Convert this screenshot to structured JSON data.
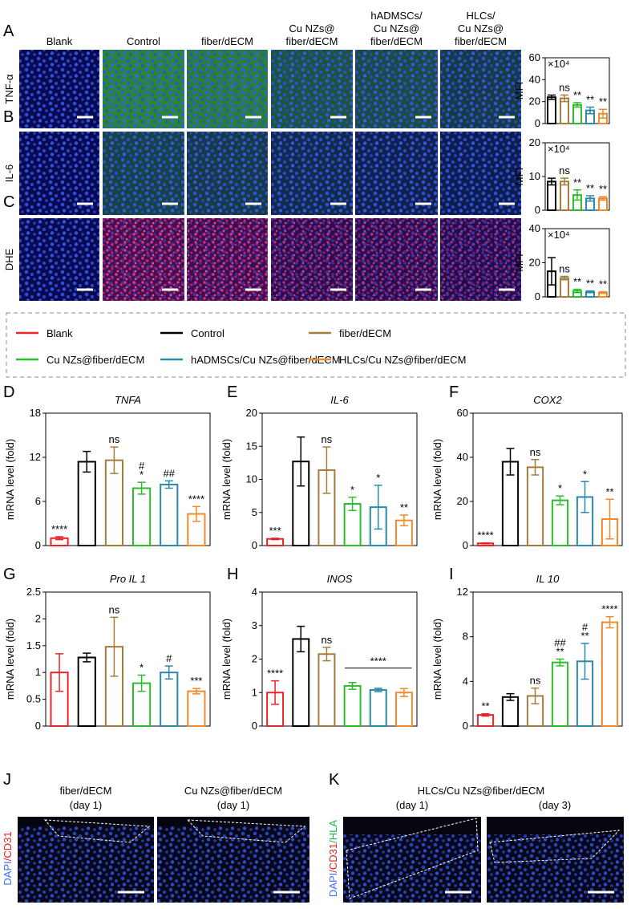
{
  "panel_labels": [
    "A",
    "B",
    "C",
    "D",
    "E",
    "F",
    "G",
    "H",
    "I",
    "J",
    "K"
  ],
  "columns": [
    [
      "Blank"
    ],
    [
      "Control"
    ],
    [
      "fiber/dECM"
    ],
    [
      "Cu NZs@",
      "fiber/dECM"
    ],
    [
      "hADMSCs/",
      "Cu NZs@",
      "fiber/dECM"
    ],
    [
      "HLCs/",
      "Cu NZs@",
      "fiber/dECM"
    ]
  ],
  "rows": [
    "TNF-α",
    "IL-6",
    "DHE"
  ],
  "legend": [
    {
      "name": "Blank",
      "color": "#e8262a"
    },
    {
      "name": "Control",
      "color": "#000000"
    },
    {
      "name": "fiber/dECM",
      "color": "#a57c3e"
    },
    {
      "name": "Cu NZs@fiber/dECM",
      "color": "#2bbd2b"
    },
    {
      "name": "hADMSCs/Cu NZs@fiber/dECM",
      "color": "#2a8aa8"
    },
    {
      "name": "HLCs/Cu NZs@fiber/dECM",
      "color": "#f08a2a"
    }
  ],
  "chart_data": [
    {
      "type": "bar",
      "ylabel": "MFI",
      "multiplier": "×10⁴",
      "ylim": [
        0,
        60
      ],
      "yticks": [
        0,
        20,
        40,
        60
      ],
      "values": [
        24,
        23,
        17,
        12,
        9
      ],
      "errors": [
        2,
        3,
        2,
        3,
        4
      ],
      "colors": [
        "#000000",
        "#a57c3e",
        "#2bbd2b",
        "#2a8aa8",
        "#f08a2a"
      ],
      "annotations": [
        [],
        [
          "ns"
        ],
        [
          "**"
        ],
        [
          "**"
        ],
        [
          "**"
        ]
      ]
    },
    {
      "type": "bar",
      "ylabel": "MFI",
      "multiplier": "×10⁴",
      "ylim": [
        0,
        20
      ],
      "yticks": [
        0,
        10,
        20
      ],
      "values": [
        8.5,
        8.5,
        4.5,
        3.5,
        3.5
      ],
      "errors": [
        1,
        1,
        1.5,
        0.8,
        0.5
      ],
      "colors": [
        "#000000",
        "#a57c3e",
        "#2bbd2b",
        "#2a8aa8",
        "#f08a2a"
      ],
      "annotations": [
        [],
        [
          "ns"
        ],
        [
          "**"
        ],
        [
          "**"
        ],
        [
          "**"
        ]
      ]
    },
    {
      "type": "bar",
      "ylabel": "MFI",
      "multiplier": "×10⁴",
      "ylim": [
        0,
        40
      ],
      "yticks": [
        0,
        20,
        40
      ],
      "values": [
        15,
        11,
        3.5,
        3,
        2.5
      ],
      "errors": [
        8,
        1,
        1,
        0.5,
        0.5
      ],
      "colors": [
        "#000000",
        "#a57c3e",
        "#2bbd2b",
        "#2a8aa8",
        "#f08a2a"
      ],
      "annotations": [
        [],
        [
          "ns"
        ],
        [
          "**"
        ],
        [
          "**"
        ],
        [
          "**"
        ]
      ]
    },
    {
      "type": "bar",
      "title": "TNFA",
      "ylabel": "mRNA level (fold)",
      "ylim": [
        0,
        18
      ],
      "yticks": [
        0,
        6,
        12,
        18
      ],
      "values": [
        1.0,
        11.4,
        11.6,
        7.8,
        8.3,
        4.3
      ],
      "errors": [
        0.2,
        1.4,
        1.8,
        0.8,
        0.5,
        1.0
      ],
      "colors": [
        "#e8262a",
        "#000000",
        "#a57c3e",
        "#2bbd2b",
        "#2a8aa8",
        "#f08a2a"
      ],
      "annotations": [
        [
          "****"
        ],
        [],
        [
          "ns"
        ],
        [
          "#",
          "*"
        ],
        [
          "##"
        ],
        [
          "****"
        ]
      ]
    },
    {
      "type": "bar",
      "title": "IL-6",
      "ylabel": "mRNA level (fold)",
      "ylim": [
        0,
        20
      ],
      "yticks": [
        0,
        5,
        10,
        15,
        20
      ],
      "values": [
        1.0,
        12.7,
        11.4,
        6.3,
        5.8,
        3.8
      ],
      "errors": [
        0.1,
        3.7,
        3.5,
        1.0,
        3.3,
        0.8
      ],
      "colors": [
        "#e8262a",
        "#000000",
        "#a57c3e",
        "#2bbd2b",
        "#2a8aa8",
        "#f08a2a"
      ],
      "annotations": [
        [
          "***"
        ],
        [],
        [
          "ns"
        ],
        [
          "*"
        ],
        [
          "*"
        ],
        [
          "**"
        ]
      ]
    },
    {
      "type": "bar",
      "title": "COX2",
      "ylabel": "mRNA level (fold)",
      "ylim": [
        0,
        60
      ],
      "yticks": [
        0,
        20,
        40,
        60
      ],
      "values": [
        1,
        38,
        35.5,
        20.5,
        22,
        12
      ],
      "errors": [
        0.2,
        6,
        3.5,
        2,
        7,
        9
      ],
      "colors": [
        "#e8262a",
        "#000000",
        "#a57c3e",
        "#2bbd2b",
        "#2a8aa8",
        "#f08a2a"
      ],
      "annotations": [
        [
          "****"
        ],
        [],
        [
          "ns"
        ],
        [
          "*"
        ],
        [
          "*"
        ],
        [
          "**"
        ]
      ]
    },
    {
      "type": "bar",
      "title": "Pro IL 1",
      "ylabel": "mRNA level (fold)",
      "ylim": [
        0,
        2.5
      ],
      "yticks": [
        0,
        0.5,
        1,
        1.5,
        2,
        2.5
      ],
      "values": [
        1.0,
        1.28,
        1.48,
        0.8,
        1.0,
        0.65
      ],
      "errors": [
        0.35,
        0.08,
        0.55,
        0.15,
        0.12,
        0.05
      ],
      "colors": [
        "#e8262a",
        "#000000",
        "#a57c3e",
        "#2bbd2b",
        "#2a8aa8",
        "#f08a2a"
      ],
      "annotations": [
        [],
        [],
        [
          "ns"
        ],
        [
          "*"
        ],
        [
          "#"
        ],
        [
          "***"
        ]
      ]
    },
    {
      "type": "bar",
      "title": "INOS",
      "ylabel": "mRNA level (fold)",
      "ylim": [
        0,
        4
      ],
      "yticks": [
        0,
        1,
        2,
        3,
        4
      ],
      "values": [
        1.0,
        2.6,
        2.15,
        1.2,
        1.08,
        1.0
      ],
      "errors": [
        0.35,
        0.38,
        0.2,
        0.1,
        0.05,
        0.12
      ],
      "colors": [
        "#e8262a",
        "#000000",
        "#a57c3e",
        "#2bbd2b",
        "#2a8aa8",
        "#f08a2a"
      ],
      "annotations": [
        [
          "****"
        ],
        [],
        [
          "ns"
        ],
        [],
        [],
        []
      ],
      "bracket": {
        "from": 3,
        "to": 5,
        "label": "****"
      }
    },
    {
      "type": "bar",
      "title": "IL 10",
      "ylabel": "mRNA level (fold)",
      "ylim": [
        0,
        12
      ],
      "yticks": [
        0,
        4,
        8,
        12
      ],
      "values": [
        1.0,
        2.6,
        2.7,
        5.7,
        5.8,
        9.3
      ],
      "errors": [
        0.1,
        0.3,
        0.7,
        0.3,
        1.6,
        0.5
      ],
      "colors": [
        "#e8262a",
        "#000000",
        "#a57c3e",
        "#2bbd2b",
        "#2a8aa8",
        "#f08a2a"
      ],
      "annotations": [
        [
          "**"
        ],
        [],
        [
          "ns"
        ],
        [
          "##",
          "**"
        ],
        [
          "#",
          "**"
        ],
        [
          "****"
        ]
      ]
    }
  ],
  "bottom": {
    "j_titles": [
      [
        "fiber/dECM",
        "(day 1)"
      ],
      [
        "Cu NZs@fiber/dECM",
        "(day 1)"
      ]
    ],
    "j_stain": [
      {
        "text": "DAPI",
        "color": "#3a6cff"
      },
      {
        "text": "/CD31",
        "color": "#e02020"
      }
    ],
    "k_title": "HLCs/Cu NZs@fiber/dECM",
    "k_days": [
      "(day 1)",
      "(day 3)"
    ],
    "k_stain": [
      {
        "text": "DAPI",
        "color": "#3a6cff"
      },
      {
        "text": "/CD31",
        "color": "#e02020"
      },
      {
        "text": "/HLA",
        "color": "#22b04a"
      }
    ]
  }
}
